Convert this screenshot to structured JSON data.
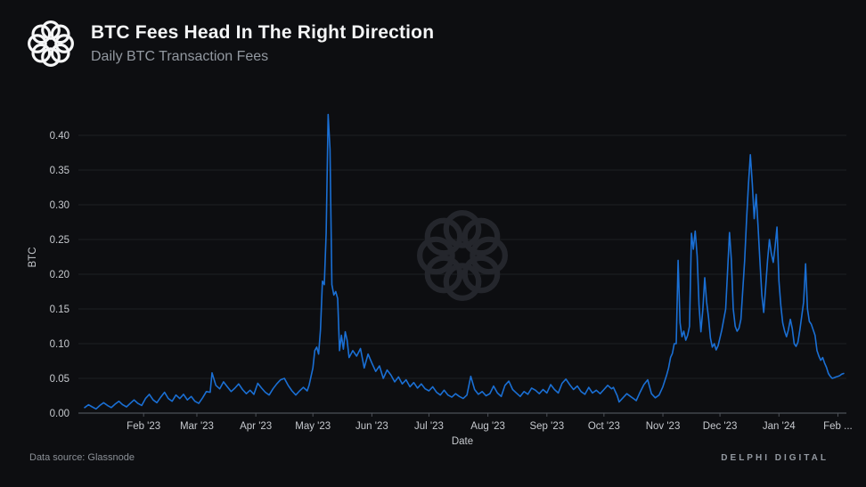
{
  "header": {
    "title": "BTC Fees Head In The Right Direction",
    "subtitle": "Daily BTC Transaction Fees"
  },
  "footer": {
    "source": "Data source: Glassnode",
    "brand": "DELPHI DIGITAL"
  },
  "icons": {
    "logo": "delphi-knot-logo",
    "watermark": "delphi-knot-watermark"
  },
  "colors": {
    "background": "#0d0e11",
    "line": "#1a6fd4",
    "grid": "#1d2024",
    "axis": "#4d5158",
    "tick_label": "#c6c9ce",
    "title": "#f4f5f6",
    "subtitle": "#9298a0",
    "watermark": "#24262c",
    "footer_text": "#8b9097"
  },
  "chart_data": {
    "type": "line",
    "title": "Daily BTC Transaction Fees",
    "xlabel": "Date",
    "ylabel": "BTC",
    "ylim": [
      0,
      0.44
    ],
    "grid": true,
    "legend": "none",
    "yticks": [
      {
        "value": 0.0,
        "label": "0.00"
      },
      {
        "value": 0.05,
        "label": "0.05"
      },
      {
        "value": 0.1,
        "label": "0.10"
      },
      {
        "value": 0.15,
        "label": "0.15"
      },
      {
        "value": 0.2,
        "label": "0.20"
      },
      {
        "value": 0.25,
        "label": "0.25"
      },
      {
        "value": 0.3,
        "label": "0.30"
      },
      {
        "value": 0.35,
        "label": "0.35"
      },
      {
        "value": 0.4,
        "label": "0.40"
      }
    ],
    "xticks": [
      {
        "day": 31,
        "label": "Feb '23"
      },
      {
        "day": 59,
        "label": "Mar '23"
      },
      {
        "day": 90,
        "label": "Apr '23"
      },
      {
        "day": 120,
        "label": "May '23"
      },
      {
        "day": 151,
        "label": "Jun '23"
      },
      {
        "day": 181,
        "label": "Jul '23"
      },
      {
        "day": 212,
        "label": "Aug '23"
      },
      {
        "day": 243,
        "label": "Sep '23"
      },
      {
        "day": 273,
        "label": "Oct '23"
      },
      {
        "day": 304,
        "label": "Nov '23"
      },
      {
        "day": 334,
        "label": "Dec '23"
      },
      {
        "day": 365,
        "label": "Jan '24"
      },
      {
        "day": 396,
        "label": "Feb ..."
      }
    ],
    "x_unit": "days since 2023-01-01",
    "series": [
      {
        "name": "Daily BTC transaction fees (BTC)",
        "points": [
          [
            0,
            0.008
          ],
          [
            2,
            0.012
          ],
          [
            4,
            0.009
          ],
          [
            6,
            0.006
          ],
          [
            8,
            0.011
          ],
          [
            10,
            0.015
          ],
          [
            12,
            0.011
          ],
          [
            14,
            0.008
          ],
          [
            16,
            0.013
          ],
          [
            18,
            0.017
          ],
          [
            20,
            0.012
          ],
          [
            22,
            0.009
          ],
          [
            24,
            0.014
          ],
          [
            26,
            0.019
          ],
          [
            28,
            0.014
          ],
          [
            30,
            0.011
          ],
          [
            32,
            0.021
          ],
          [
            34,
            0.027
          ],
          [
            36,
            0.019
          ],
          [
            38,
            0.015
          ],
          [
            40,
            0.023
          ],
          [
            42,
            0.03
          ],
          [
            44,
            0.021
          ],
          [
            46,
            0.017
          ],
          [
            48,
            0.026
          ],
          [
            50,
            0.021
          ],
          [
            52,
            0.027
          ],
          [
            54,
            0.019
          ],
          [
            56,
            0.024
          ],
          [
            58,
            0.017
          ],
          [
            60,
            0.014
          ],
          [
            62,
            0.022
          ],
          [
            64,
            0.031
          ],
          [
            66,
            0.03
          ],
          [
            67,
            0.058
          ],
          [
            69,
            0.04
          ],
          [
            71,
            0.035
          ],
          [
            73,
            0.045
          ],
          [
            75,
            0.038
          ],
          [
            77,
            0.031
          ],
          [
            79,
            0.036
          ],
          [
            81,
            0.042
          ],
          [
            83,
            0.034
          ],
          [
            85,
            0.028
          ],
          [
            87,
            0.033
          ],
          [
            89,
            0.027
          ],
          [
            91,
            0.043
          ],
          [
            93,
            0.036
          ],
          [
            95,
            0.03
          ],
          [
            97,
            0.026
          ],
          [
            99,
            0.035
          ],
          [
            101,
            0.042
          ],
          [
            103,
            0.048
          ],
          [
            105,
            0.05
          ],
          [
            107,
            0.04
          ],
          [
            109,
            0.032
          ],
          [
            111,
            0.026
          ],
          [
            113,
            0.032
          ],
          [
            115,
            0.037
          ],
          [
            117,
            0.032
          ],
          [
            118,
            0.04
          ],
          [
            120,
            0.065
          ],
          [
            121,
            0.09
          ],
          [
            122,
            0.095
          ],
          [
            123,
            0.085
          ],
          [
            124,
            0.12
          ],
          [
            125,
            0.19
          ],
          [
            126,
            0.185
          ],
          [
            127,
            0.26
          ],
          [
            128,
            0.43
          ],
          [
            129,
            0.38
          ],
          [
            130,
            0.185
          ],
          [
            131,
            0.17
          ],
          [
            132,
            0.175
          ],
          [
            133,
            0.165
          ],
          [
            134,
            0.09
          ],
          [
            135,
            0.112
          ],
          [
            136,
            0.092
          ],
          [
            137,
            0.117
          ],
          [
            138,
            0.105
          ],
          [
            139,
            0.08
          ],
          [
            141,
            0.09
          ],
          [
            143,
            0.082
          ],
          [
            145,
            0.093
          ],
          [
            147,
            0.065
          ],
          [
            149,
            0.085
          ],
          [
            151,
            0.072
          ],
          [
            153,
            0.06
          ],
          [
            155,
            0.068
          ],
          [
            157,
            0.05
          ],
          [
            159,
            0.062
          ],
          [
            161,
            0.055
          ],
          [
            163,
            0.045
          ],
          [
            165,
            0.052
          ],
          [
            167,
            0.042
          ],
          [
            169,
            0.048
          ],
          [
            171,
            0.038
          ],
          [
            173,
            0.044
          ],
          [
            175,
            0.036
          ],
          [
            177,
            0.042
          ],
          [
            179,
            0.035
          ],
          [
            181,
            0.032
          ],
          [
            183,
            0.038
          ],
          [
            185,
            0.03
          ],
          [
            187,
            0.026
          ],
          [
            189,
            0.033
          ],
          [
            191,
            0.026
          ],
          [
            193,
            0.023
          ],
          [
            195,
            0.028
          ],
          [
            197,
            0.024
          ],
          [
            199,
            0.021
          ],
          [
            201,
            0.026
          ],
          [
            203,
            0.053
          ],
          [
            205,
            0.034
          ],
          [
            207,
            0.027
          ],
          [
            209,
            0.031
          ],
          [
            211,
            0.025
          ],
          [
            213,
            0.028
          ],
          [
            215,
            0.039
          ],
          [
            217,
            0.029
          ],
          [
            219,
            0.024
          ],
          [
            221,
            0.04
          ],
          [
            223,
            0.046
          ],
          [
            225,
            0.034
          ],
          [
            227,
            0.029
          ],
          [
            229,
            0.024
          ],
          [
            231,
            0.031
          ],
          [
            233,
            0.027
          ],
          [
            235,
            0.036
          ],
          [
            237,
            0.033
          ],
          [
            239,
            0.028
          ],
          [
            241,
            0.034
          ],
          [
            243,
            0.029
          ],
          [
            245,
            0.041
          ],
          [
            247,
            0.034
          ],
          [
            249,
            0.029
          ],
          [
            251,
            0.043
          ],
          [
            253,
            0.049
          ],
          [
            255,
            0.041
          ],
          [
            257,
            0.034
          ],
          [
            259,
            0.039
          ],
          [
            261,
            0.031
          ],
          [
            263,
            0.027
          ],
          [
            265,
            0.037
          ],
          [
            267,
            0.029
          ],
          [
            269,
            0.033
          ],
          [
            271,
            0.028
          ],
          [
            273,
            0.034
          ],
          [
            275,
            0.04
          ],
          [
            277,
            0.035
          ],
          [
            278,
            0.037
          ],
          [
            280,
            0.025
          ],
          [
            281,
            0.016
          ],
          [
            283,
            0.022
          ],
          [
            285,
            0.028
          ],
          [
            287,
            0.024
          ],
          [
            289,
            0.02
          ],
          [
            290,
            0.018
          ],
          [
            292,
            0.03
          ],
          [
            294,
            0.041
          ],
          [
            296,
            0.048
          ],
          [
            298,
            0.028
          ],
          [
            300,
            0.022
          ],
          [
            302,
            0.026
          ],
          [
            304,
            0.038
          ],
          [
            306,
            0.055
          ],
          [
            307,
            0.065
          ],
          [
            308,
            0.08
          ],
          [
            309,
            0.086
          ],
          [
            310,
            0.1
          ],
          [
            311,
            0.1
          ],
          [
            312,
            0.22
          ],
          [
            313,
            0.13
          ],
          [
            314,
            0.11
          ],
          [
            315,
            0.118
          ],
          [
            316,
            0.105
          ],
          [
            317,
            0.112
          ],
          [
            318,
            0.125
          ],
          [
            319,
            0.259
          ],
          [
            320,
            0.236
          ],
          [
            321,
            0.262
          ],
          [
            322,
            0.226
          ],
          [
            323,
            0.155
          ],
          [
            324,
            0.117
          ],
          [
            325,
            0.15
          ],
          [
            326,
            0.195
          ],
          [
            327,
            0.16
          ],
          [
            328,
            0.137
          ],
          [
            329,
            0.108
          ],
          [
            330,
            0.095
          ],
          [
            331,
            0.1
          ],
          [
            332,
            0.091
          ],
          [
            333,
            0.097
          ],
          [
            335,
            0.12
          ],
          [
            337,
            0.15
          ],
          [
            339,
            0.26
          ],
          [
            340,
            0.22
          ],
          [
            341,
            0.15
          ],
          [
            342,
            0.125
          ],
          [
            343,
            0.118
          ],
          [
            344,
            0.122
          ],
          [
            345,
            0.135
          ],
          [
            347,
            0.22
          ],
          [
            348,
            0.28
          ],
          [
            349,
            0.33
          ],
          [
            350,
            0.372
          ],
          [
            351,
            0.33
          ],
          [
            352,
            0.28
          ],
          [
            353,
            0.315
          ],
          [
            354,
            0.27
          ],
          [
            355,
            0.22
          ],
          [
            356,
            0.17
          ],
          [
            357,
            0.145
          ],
          [
            358,
            0.18
          ],
          [
            359,
            0.22
          ],
          [
            360,
            0.25
          ],
          [
            361,
            0.23
          ],
          [
            362,
            0.217
          ],
          [
            363,
            0.24
          ],
          [
            364,
            0.268
          ],
          [
            365,
            0.19
          ],
          [
            366,
            0.155
          ],
          [
            367,
            0.13
          ],
          [
            368,
            0.118
          ],
          [
            369,
            0.11
          ],
          [
            370,
            0.12
          ],
          [
            371,
            0.135
          ],
          [
            372,
            0.122
          ],
          [
            373,
            0.1
          ],
          [
            374,
            0.096
          ],
          [
            375,
            0.102
          ],
          [
            376,
            0.12
          ],
          [
            377,
            0.14
          ],
          [
            378,
            0.16
          ],
          [
            379,
            0.215
          ],
          [
            380,
            0.15
          ],
          [
            381,
            0.132
          ],
          [
            382,
            0.128
          ],
          [
            383,
            0.12
          ],
          [
            384,
            0.112
          ],
          [
            385,
            0.09
          ],
          [
            386,
            0.082
          ],
          [
            387,
            0.076
          ],
          [
            388,
            0.08
          ],
          [
            389,
            0.072
          ],
          [
            390,
            0.066
          ],
          [
            391,
            0.057
          ],
          [
            392,
            0.053
          ],
          [
            393,
            0.05
          ],
          [
            394,
            0.051
          ],
          [
            395,
            0.052
          ],
          [
            396,
            0.053
          ],
          [
            397,
            0.054
          ],
          [
            398,
            0.056
          ],
          [
            399,
            0.057
          ]
        ]
      }
    ]
  }
}
